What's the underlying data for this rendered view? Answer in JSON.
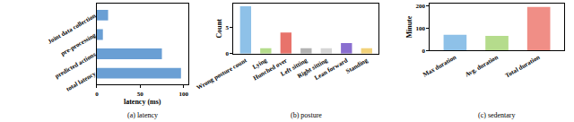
{
  "chart_data": [
    {
      "type": "bar",
      "title": "(a) latency",
      "orientation": "horizontal",
      "categories": [
        "Joint data collection",
        "pre-processing",
        "predicted actions",
        "total latency"
      ],
      "values": [
        13,
        7,
        75,
        97
      ],
      "color": "#6a9fd4",
      "x_label": "latency (ms)",
      "xlim": [
        0,
        105
      ],
      "xticks": [
        0,
        50,
        100
      ]
    },
    {
      "type": "bar",
      "title": "(b) posture",
      "categories": [
        "Wrong posture count",
        "Lying",
        "Hunched over",
        "Left sitting",
        "Right sitting",
        "Lean forward",
        "Standing"
      ],
      "values": [
        9,
        1,
        4,
        1,
        1,
        2,
        1
      ],
      "colors": [
        "#8ec1e8",
        "#b5dc8c",
        "#e8736b",
        "#b3b3b3",
        "#d6d6d6",
        "#8a6fd0",
        "#f2d27a"
      ],
      "y_label": "Count",
      "ylim": [
        0,
        9.5
      ],
      "yticks": [
        0,
        5
      ]
    },
    {
      "type": "bar",
      "title": "(c) sedentary",
      "categories": [
        "Max duration",
        "Avg. duration",
        "Total duration"
      ],
      "values": [
        70,
        65,
        195
      ],
      "colors": [
        "#8ec1e8",
        "#b5dc8c",
        "#f08e86"
      ],
      "y_label": "Minute",
      "ylim": [
        0,
        210
      ],
      "yticks": [
        0,
        100,
        200
      ]
    }
  ]
}
